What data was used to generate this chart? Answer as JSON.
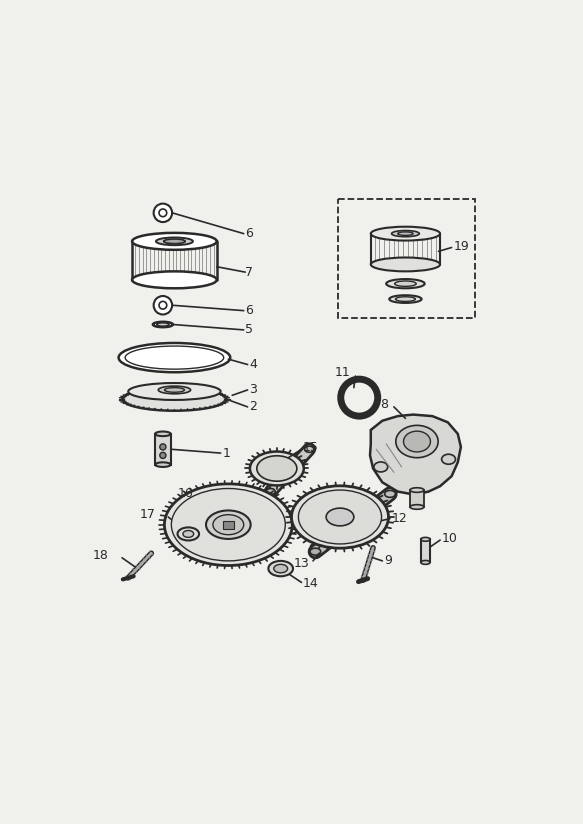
{
  "bg": "#f0f0ec",
  "lc": "#2a2a2a",
  "lc_light": "#888888",
  "figsize": [
    5.83,
    8.24
  ],
  "dpi": 100,
  "label_fs": 9
}
